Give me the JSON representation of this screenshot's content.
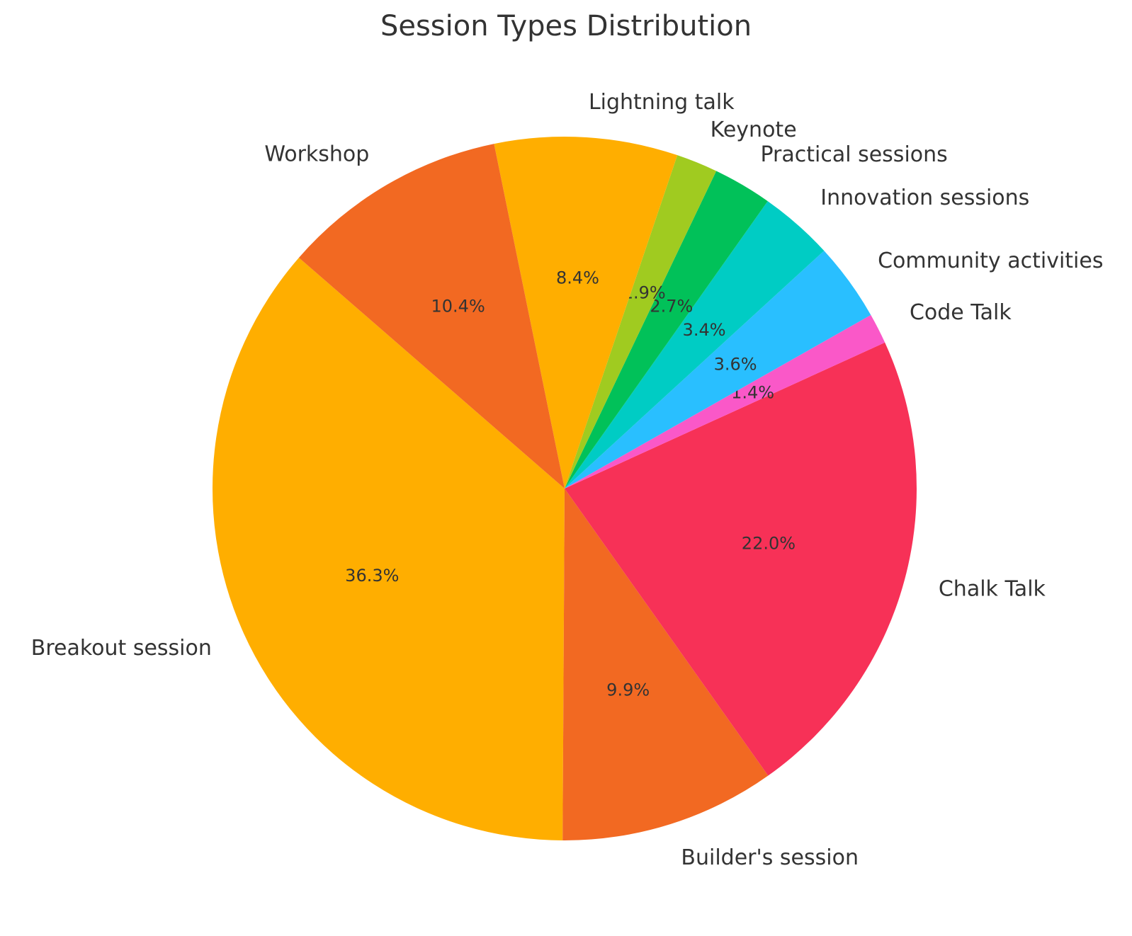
{
  "chart_data": {
    "type": "pie",
    "title": "Session Types Distribution",
    "slices": [
      {
        "label": "Breakout session",
        "value": 36.3,
        "pct_label": "36.3%",
        "color": "#FFAE00"
      },
      {
        "label": "Builder's session",
        "value": 9.9,
        "pct_label": "9.9%",
        "color": "#F26922"
      },
      {
        "label": "Chalk Talk",
        "value": 22.0,
        "pct_label": "22.0%",
        "color": "#F73157"
      },
      {
        "label": "Code Talk",
        "value": 1.4,
        "pct_label": "1.4%",
        "color": "#FA58C8"
      },
      {
        "label": "Community activities",
        "value": 3.6,
        "pct_label": "3.6%",
        "color": "#29BFFF"
      },
      {
        "label": "Innovation sessions",
        "value": 3.4,
        "pct_label": "3.4%",
        "color": "#00CCC4"
      },
      {
        "label": "Practical sessions",
        "value": 2.7,
        "pct_label": "2.7%",
        "color": "#01C159"
      },
      {
        "label": "Keynote",
        "value": 1.9,
        "pct_label": "1.9%",
        "color": "#A0CB20"
      },
      {
        "label": "Lightning talk",
        "value": 8.4,
        "pct_label": "8.4%",
        "color": "#FFAE00"
      },
      {
        "label": "Workshop",
        "value": 10.4,
        "pct_label": "10.4%",
        "color": "#F26922"
      }
    ],
    "start_angle_deg": 139,
    "direction": "counterclockwise"
  }
}
